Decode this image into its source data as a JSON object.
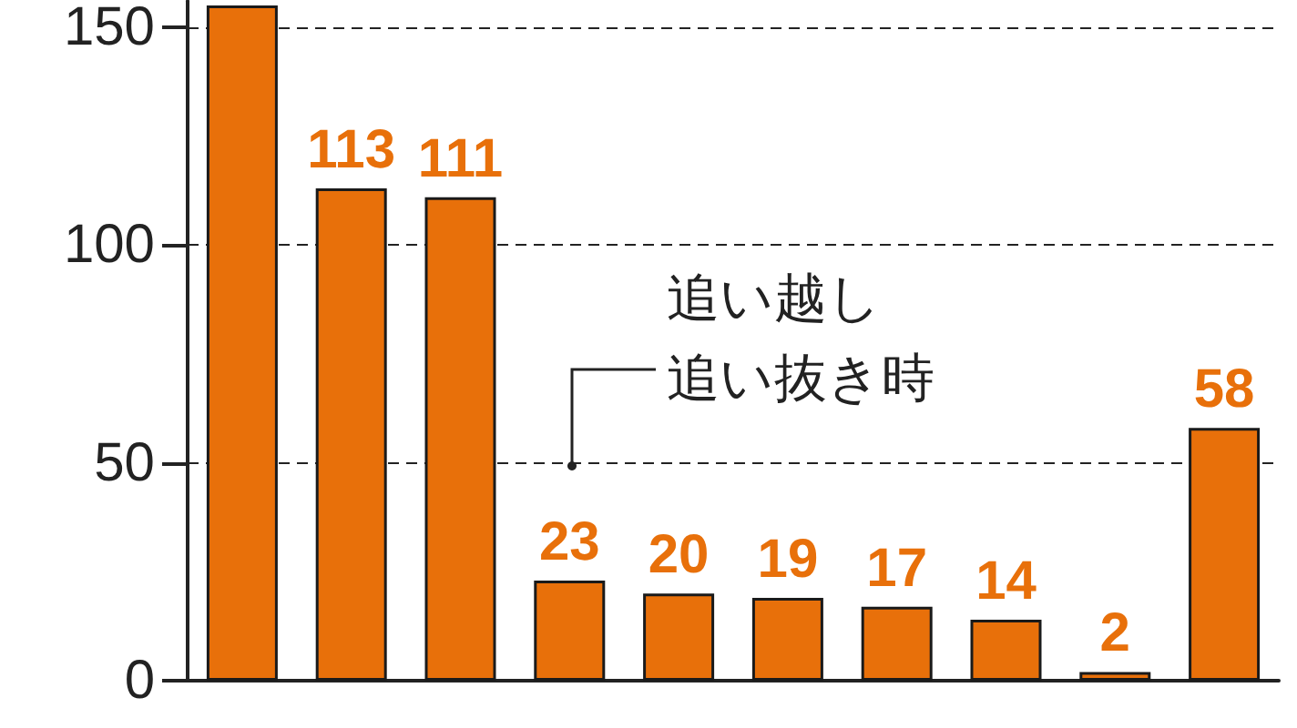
{
  "chart_data": {
    "type": "bar",
    "categories": [
      null,
      null,
      null,
      null,
      null,
      null,
      null,
      null,
      null,
      null
    ],
    "values": [
      155,
      113,
      111,
      23,
      20,
      19,
      17,
      14,
      2,
      58
    ],
    "value_labels": [
      null,
      "113",
      "111",
      "23",
      "20",
      "19",
      "17",
      "14",
      "2",
      "58"
    ],
    "color": "#e8700a",
    "ylim": [
      0,
      156
    ],
    "yticks": [
      0,
      50,
      100,
      150
    ],
    "grid": "y",
    "annotations": [
      "追い越し",
      "追い抜き時"
    ]
  }
}
